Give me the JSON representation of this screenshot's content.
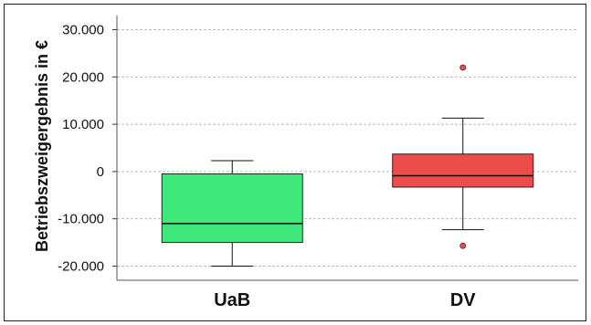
{
  "chart_data": {
    "type": "boxplot",
    "title": "",
    "xlabel": "",
    "ylabel": "Betriebszweigergebnis in €",
    "ylim": [
      -23000,
      33000
    ],
    "yticks": [
      30000,
      20000,
      10000,
      0,
      -10000,
      -20000
    ],
    "ytick_labels": [
      "30.000",
      "20.000",
      "10.000",
      "0",
      "-10.000",
      "-20.000"
    ],
    "grid": true,
    "categories": [
      "UaB",
      "DV"
    ],
    "boxes": [
      {
        "category": "UaB",
        "color": "#3ee87a",
        "whisker_low": -20000,
        "q1": -15000,
        "median": -11000,
        "q3": -500,
        "whisker_high": 2300,
        "outliers": []
      },
      {
        "category": "DV",
        "color": "#ee4b4b",
        "whisker_low": -12300,
        "q1": -3300,
        "median": -900,
        "q3": 3700,
        "whisker_high": 11300,
        "outliers": [
          22000,
          -15700
        ]
      }
    ]
  }
}
